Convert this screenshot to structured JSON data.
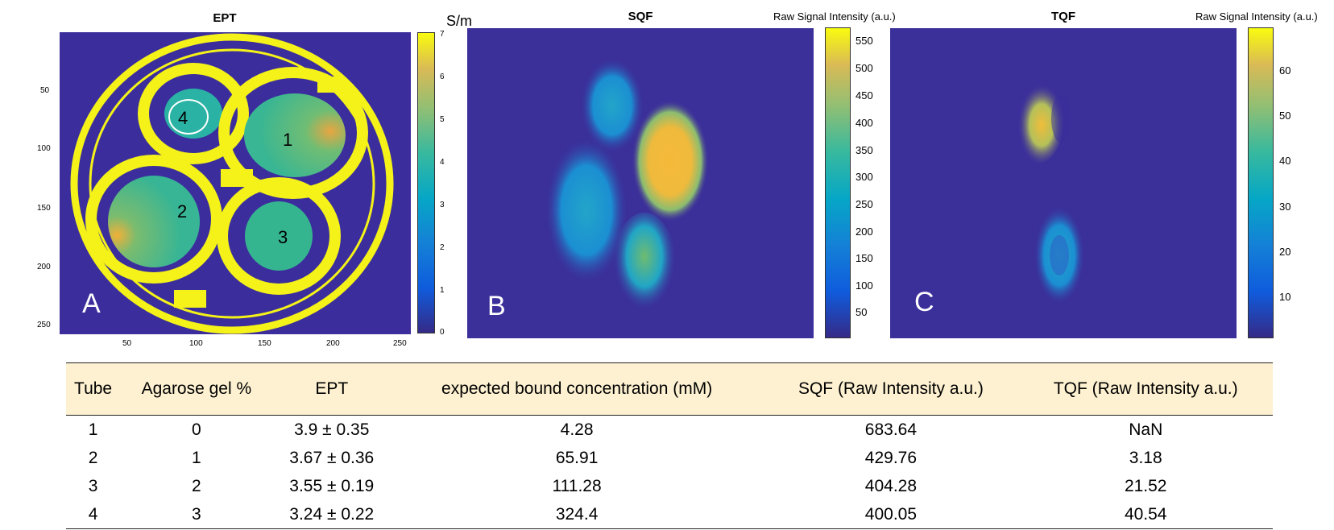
{
  "panel_a": {
    "title": "EPT",
    "unit": "S/m",
    "letter": "A",
    "y_ticks": [
      "50",
      "100",
      "150",
      "200",
      "250"
    ],
    "x_ticks": [
      "50",
      "100",
      "150",
      "200",
      "250"
    ],
    "colorbar_ticks": [
      "0",
      "1",
      "2",
      "3",
      "4",
      "5",
      "6",
      "7"
    ],
    "tube_labels": [
      "1",
      "2",
      "3",
      "4"
    ]
  },
  "panel_b": {
    "title": "SQF",
    "colorbar_label": "Raw Signal Intensity (a.u.)",
    "letter": "B",
    "colorbar_ticks": [
      "50",
      "100",
      "150",
      "200",
      "250",
      "300",
      "350",
      "400",
      "450",
      "500",
      "550"
    ]
  },
  "panel_c": {
    "title": "TQF",
    "colorbar_label": "Raw Signal Intensity (a.u.)",
    "letter": "C",
    "colorbar_ticks": [
      "10",
      "20",
      "30",
      "40",
      "50",
      "60"
    ]
  },
  "colors": {
    "background": "#3b2e9c",
    "ring": "#f4f218",
    "tube": "#35b58f",
    "high": "#f9b43a"
  },
  "table": {
    "headers": [
      "Tube",
      "Agarose gel %",
      "EPT",
      "expected bound concentration (mM)",
      "SQF (Raw Intensity a.u.)",
      "TQF (Raw Intensity a.u.)"
    ],
    "rows": [
      [
        "1",
        "0",
        "3.9 ± 0.35",
        "4.28",
        "683.64",
        "NaN"
      ],
      [
        "2",
        "1",
        "3.67 ± 0.36",
        "65.91",
        "429.76",
        "3.18"
      ],
      [
        "3",
        "2",
        "3.55 ± 0.19",
        "111.28",
        "404.28",
        "21.52"
      ],
      [
        "4",
        "3",
        "3.24 ± 0.22",
        "324.4",
        "400.05",
        "40.54"
      ]
    ]
  }
}
